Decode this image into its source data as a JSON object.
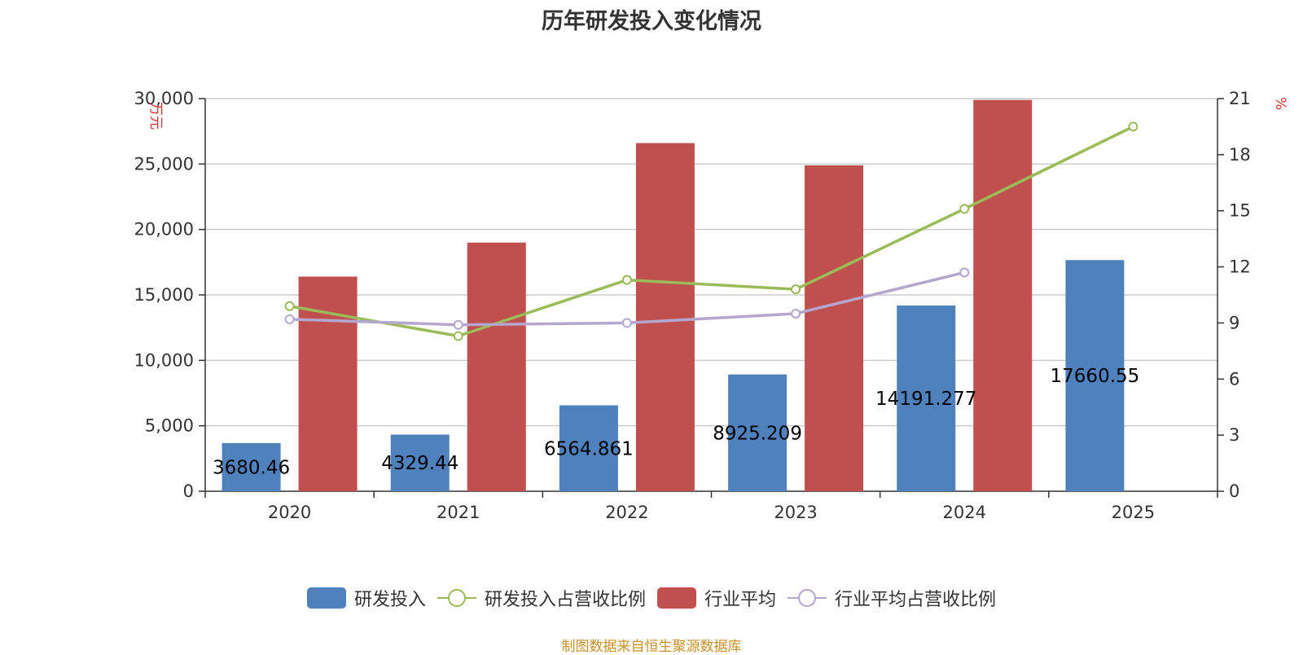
{
  "chart_data": {
    "type": "bar",
    "title": "历年研发投入变化情况",
    "categories": [
      "2020",
      "2021",
      "2022",
      "2023",
      "2024",
      "2025"
    ],
    "y_left": {
      "unit": "万元",
      "min": 0,
      "max": 30000,
      "ticks": [
        "0",
        "5,000",
        "10,000",
        "15,000",
        "20,000",
        "25,000",
        "30,000"
      ]
    },
    "y_right": {
      "unit": "%",
      "min": 0,
      "max": 21,
      "ticks": [
        "0",
        "3",
        "6",
        "9",
        "12",
        "15",
        "18",
        "21"
      ]
    },
    "grid": true,
    "legend_position": "bottom",
    "series": [
      {
        "name": "研发投入",
        "type": "bar",
        "axis": "left",
        "color": "#4f81bd",
        "values": [
          3680.46,
          4329.44,
          6564.861,
          8925.209,
          14191.277,
          17660.55
        ],
        "labels": [
          "3680.46",
          "4329.44",
          "6564.861",
          "8925.209",
          "14191.277",
          "17660.55"
        ]
      },
      {
        "name": "研发投入占营收比例",
        "type": "line",
        "axis": "right",
        "color": "#9bbb59",
        "values": [
          9.9,
          8.3,
          11.3,
          10.8,
          15.1,
          19.5
        ]
      },
      {
        "name": "行业平均",
        "type": "bar",
        "axis": "left",
        "color": "#c0504d",
        "values": [
          16400,
          19000,
          26600,
          24900,
          29900,
          null
        ]
      },
      {
        "name": "行业平均占营收比例",
        "type": "line",
        "axis": "right",
        "color": "#b3a6cf",
        "values": [
          9.2,
          8.9,
          9.0,
          9.5,
          11.7,
          null
        ]
      }
    ]
  },
  "source_text": "制图数据来自恒生聚源数据库"
}
